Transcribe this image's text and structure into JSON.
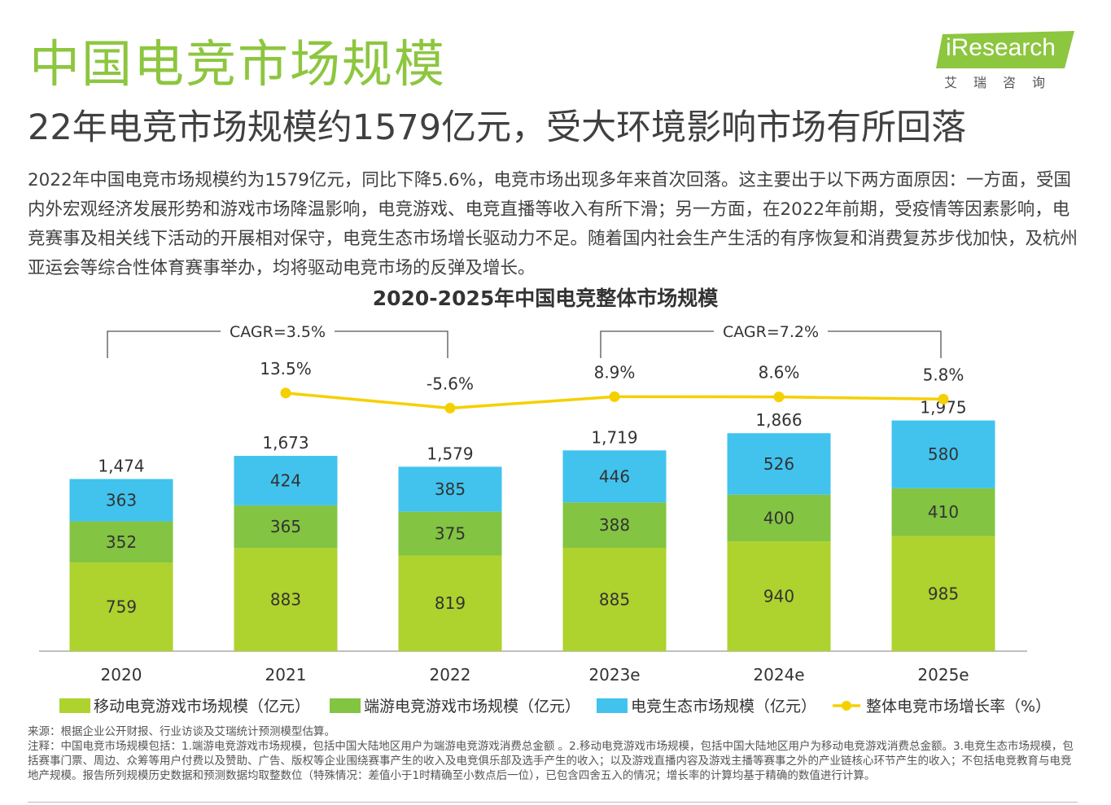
{
  "header": {
    "title": "中国电竞市场规模",
    "logo_text": "iResearch",
    "logo_sub": "艾瑞咨询",
    "subtitle": "22年电竞市场规模约1579亿元，受大环境影响市场有所回落"
  },
  "summary": "2022年中国电竞市场规模约为1579亿元，同比下降5.6%，电竞市场出现多年来首次回落。这主要出于以下两方面原因：一方面，受国内外宏观经济发展形势和游戏市场降温影响，电竞游戏、电竞直播等收入有所下滑；另一方面，在2022年前期，受疫情等因素影响，电竞赛事及相关线下活动的开展相对保守，电竞生态市场增长驱动力不足。随着国内社会生产生活的有序恢复和消费复苏步伐加快，及杭州亚运会等综合性体育赛事举办，均将驱动电竞市场的反弹及增长。",
  "chart_data": {
    "type": "bar",
    "stacked": true,
    "title": "2020-2025年中国电竞整体市场规模",
    "categories": [
      "2020",
      "2021",
      "2022",
      "2023e",
      "2024e",
      "2025e"
    ],
    "series": [
      {
        "name": "移动电竞游戏市场规模（亿元）",
        "values": [
          759,
          883,
          819,
          885,
          940,
          985
        ],
        "color": "#aed22e"
      },
      {
        "name": "端游电竞游戏市场规模（亿元）",
        "values": [
          352,
          365,
          375,
          388,
          400,
          410
        ],
        "color": "#83c442"
      },
      {
        "name": "电竞生态市场规模（亿元）",
        "values": [
          363,
          424,
          385,
          446,
          526,
          580
        ],
        "color": "#41c3ee"
      }
    ],
    "totals": [
      "1,474",
      "1,673",
      "1,579",
      "1,719",
      "1,866",
      "1,975"
    ],
    "growth": {
      "name": "整体电竞市场增长率（%）",
      "values": [
        13.5,
        -5.6,
        8.9,
        8.6,
        5.8
      ],
      "labels": [
        "13.5%",
        "-5.6%",
        "8.9%",
        "8.6%",
        "5.8%"
      ],
      "categories": [
        "2021",
        "2022",
        "2023e",
        "2024e",
        "2025e"
      ],
      "color": "#f5d000"
    },
    "cagr": [
      {
        "label": "CAGR=3.5%",
        "from": "2020",
        "to": "2022"
      },
      {
        "label": "CAGR=7.2%",
        "from": "2023e",
        "to": "2025e"
      }
    ],
    "legend_position": "bottom"
  },
  "footer": {
    "source": "来源：根据企业公开财报、行业访谈及艾瑞统计预测模型估算。",
    "notes": "注释：中国电竞市场规模包括：1.端游电竞游戏市场规模，包括中国大陆地区用户为端游电竞游戏消费总金额 。2.移动电竞游戏市场规模，包括中国大陆地区用户为移动电竞游戏消费总金额。3.电竞生态市场规模，包括赛事门票、周边、众筹等用户付费以及赞助、广告、版权等企业围绕赛事产生的收入及电竞俱乐部及选手产生的收入；以及游戏直播内容及游戏主播等赛事之外的产业链核心环节产生的收入；不包括电竞教育与电竞地产规模。报告所列规模历史数据和预测数据均取整数位（特殊情况：差值小于1时精确至小数点后一位），已包含四舍五入的情况；增长率的计算均基于精确的数值进行计算。"
  }
}
